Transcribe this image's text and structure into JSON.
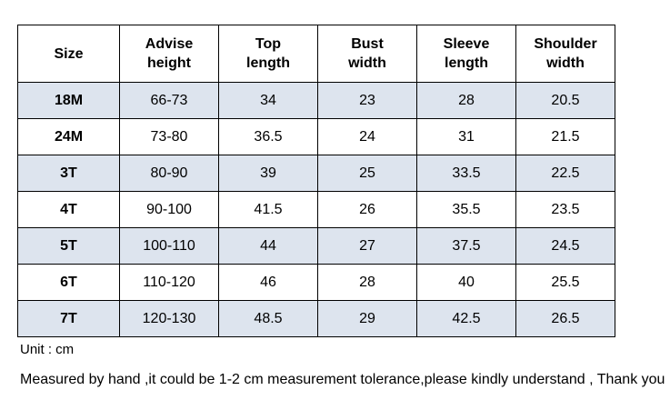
{
  "table": {
    "headers": [
      "Size",
      "Advise\nheight",
      "Top\nlength",
      "Bust\nwidth",
      "Sleeve\nlength",
      "Shoulder\nwidth"
    ],
    "rows": [
      [
        "18M",
        "66-73",
        "34",
        "23",
        "28",
        "20.5"
      ],
      [
        "24M",
        "73-80",
        "36.5",
        "24",
        "31",
        "21.5"
      ],
      [
        "3T",
        "80-90",
        "39",
        "25",
        "33.5",
        "22.5"
      ],
      [
        "4T",
        "90-100",
        "41.5",
        "26",
        "35.5",
        "23.5"
      ],
      [
        "5T",
        "100-110",
        "44",
        "27",
        "37.5",
        "24.5"
      ],
      [
        "6T",
        "110-120",
        "46",
        "28",
        "40",
        "25.5"
      ],
      [
        "7T",
        "120-130",
        "48.5",
        "29",
        "42.5",
        "26.5"
      ]
    ],
    "shade_color": "#dde4ee"
  },
  "notes": {
    "unit": "Unit : cm",
    "disclaimer": "Measured by hand ,it could be 1-2 cm measurement tolerance,please kindly understand , Thank you !"
  }
}
